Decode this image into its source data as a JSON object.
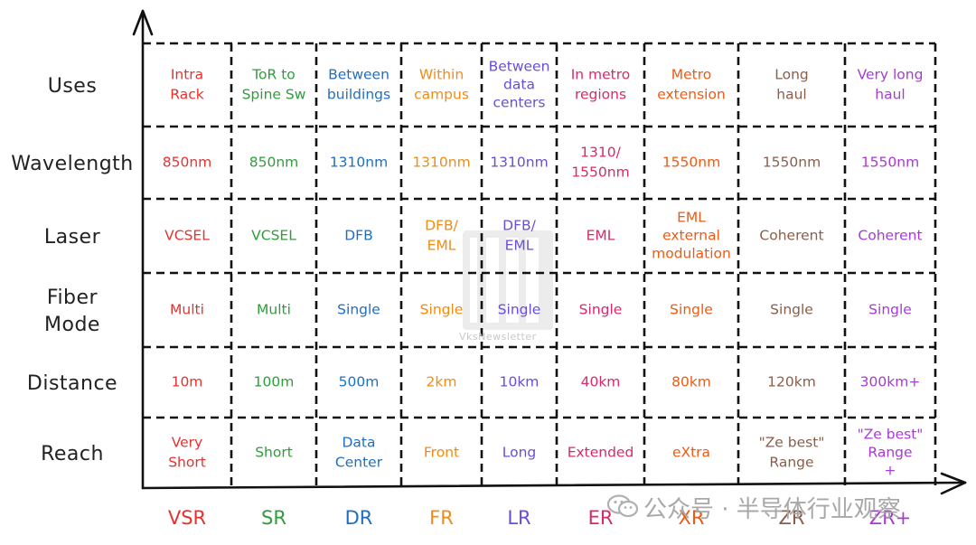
{
  "rows": [
    "Uses",
    "Wavelength",
    "Laser",
    "Fiber\nMode",
    "Distance",
    "Reach"
  ],
  "columns": [
    {
      "code": "VSR",
      "color": "#e5322f",
      "cells": [
        "Intra\nRack",
        "850nm",
        "VCSEL",
        "Multi",
        "10m",
        "Very\nShort"
      ]
    },
    {
      "code": "SR",
      "color": "#2e9e3a",
      "cells": [
        "ToR to\nSpine Sw",
        "850nm",
        "VCSEL",
        "Multi",
        "100m",
        "Short"
      ]
    },
    {
      "code": "DR",
      "color": "#1f6fc1",
      "cells": [
        "Between\nbuildings",
        "1310nm",
        "DFB",
        "Single",
        "500m",
        "Data\nCenter"
      ]
    },
    {
      "code": "FR",
      "color": "#f08c16",
      "cells": [
        "Within\ncampus",
        "1310nm",
        "DFB/\nEML",
        "Single",
        "2km",
        "Front"
      ]
    },
    {
      "code": "LR",
      "color": "#6a4ed6",
      "cells": [
        "Between\ndata\ncenters",
        "1310nm",
        "DFB/\nEML",
        "Single",
        "10km",
        "Long"
      ]
    },
    {
      "code": "ER",
      "color": "#d62a6a",
      "cells": [
        "In metro\nregions",
        "1310/\n1550nm",
        "EML",
        "Single",
        "40km",
        "Extended"
      ]
    },
    {
      "code": "XR",
      "color": "#ee5a12",
      "cells": [
        "Metro\nextension",
        "1550nm",
        "EML\nexternal\nmodulation",
        "Single",
        "80km",
        "eXtra"
      ]
    },
    {
      "code": "ZR",
      "color": "#8a5e4a",
      "cells": [
        "Long\nhaul",
        "1550nm",
        "Coherent",
        "Single",
        "120km",
        "\"Ze best\"\nRange"
      ]
    },
    {
      "code": "ZR+",
      "color": "#a83ad3",
      "cells": [
        "Very long\nhaul",
        "1550nm",
        "Coherent",
        "Single",
        "300km+",
        "\"Ze best\"\nRange\n+"
      ]
    }
  ],
  "watermark": {
    "text": "VksNewsletter"
  },
  "source": {
    "text": "公众号 · 半导体行业观察"
  }
}
